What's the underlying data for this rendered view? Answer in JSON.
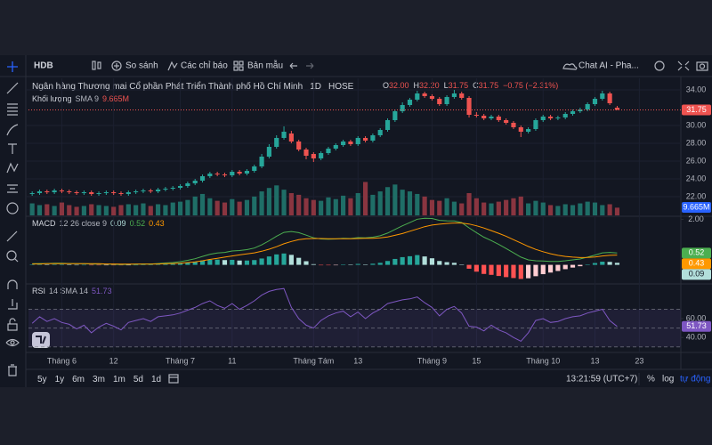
{
  "toolbar": {
    "symbol": "HDB",
    "compare": "So sánh",
    "indicators": "Các chỉ báo",
    "templates": "Bản mẫu",
    "chat": "Chat AI - Pha..."
  },
  "legend": {
    "title": "Ngân hàng Thương mại Cổ phần Phát Triển Thành phố Hồ Chí Minh",
    "interval": "1D",
    "exchange": "HOSE",
    "ohlc": [
      {
        "key": "O",
        "value": "32.00"
      },
      {
        "key": "H",
        "value": "32.20"
      },
      {
        "key": "L",
        "value": "31.75"
      },
      {
        "key": "C",
        "value": "31.75"
      }
    ],
    "change": "−0.75 (−2.31%)"
  },
  "chart_data": [
    {
      "type": "candlestick",
      "up_color": "#26a69a",
      "down_color": "#ef5350",
      "grid": true,
      "xlim": [
        -0.5,
        87.6
      ],
      "xticks": [
        {
          "value": 4,
          "label": "Tháng 6"
        },
        {
          "value": 11,
          "label": "12"
        },
        {
          "value": 20,
          "label": "Tháng 7"
        },
        {
          "value": 27,
          "label": "11"
        },
        {
          "value": 38,
          "label": "Tháng Tám"
        },
        {
          "value": 44,
          "label": "13"
        },
        {
          "value": 54,
          "label": "Tháng 9"
        },
        {
          "value": 60,
          "label": "15"
        },
        {
          "value": 69,
          "label": "Tháng 10"
        },
        {
          "value": 76,
          "label": "13"
        },
        {
          "value": 82,
          "label": "23"
        }
      ],
      "ylim": [
        19.9,
        35.3
      ],
      "yticks": [
        {
          "value": 34,
          "label": "34.00"
        },
        {
          "value": 30,
          "label": "30.00"
        },
        {
          "value": 28,
          "label": "28.00"
        },
        {
          "value": 26,
          "label": "26.00"
        },
        {
          "value": 24,
          "label": "24.00"
        },
        {
          "value": 22,
          "label": "22.00"
        }
      ],
      "open": [
        22.3,
        22.4,
        22.6,
        22.5,
        22.7,
        22.6,
        22.5,
        22.4,
        22.5,
        22.3,
        22.4,
        22.5,
        22.4,
        22.3,
        22.5,
        22.6,
        22.7,
        22.6,
        22.8,
        22.9,
        23.0,
        23.2,
        23.5,
        23.8,
        24.3,
        24.6,
        24.5,
        24.4,
        24.8,
        24.6,
        24.9,
        25.4,
        26.5,
        27.6,
        28.6,
        29.1,
        28.2,
        27.3,
        26.8,
        26.3,
        26.9,
        27.4,
        27.8,
        28.2,
        27.9,
        28.6,
        28.3,
        28.9,
        29.5,
        30.6,
        31.6,
        32.3,
        32.9,
        33.6,
        33.3,
        33.0,
        32.4,
        33.2,
        33.6,
        33.1,
        31.2,
        31.1,
        30.8,
        31.0,
        30.6,
        30.3,
        29.8,
        29.3,
        29.6,
        30.6,
        31.0,
        30.8,
        30.9,
        31.3,
        31.6,
        31.8,
        32.4,
        33.0,
        33.6,
        32.0
      ],
      "high": [
        22.6,
        22.8,
        22.8,
        22.9,
        22.9,
        22.8,
        22.7,
        22.7,
        22.7,
        22.6,
        22.7,
        22.7,
        22.6,
        22.7,
        22.8,
        22.9,
        22.9,
        23.0,
        23.1,
        23.2,
        23.4,
        23.7,
        24.0,
        24.5,
        24.8,
        24.8,
        24.7,
        25.0,
        25.0,
        25.1,
        25.6,
        26.8,
        27.9,
        28.9,
        29.9,
        29.4,
        28.4,
        27.5,
        27.0,
        27.1,
        27.6,
        28.0,
        28.4,
        28.4,
        28.8,
        28.8,
        29.1,
        29.7,
        30.8,
        31.8,
        32.6,
        33.1,
        33.9,
        33.8,
        33.5,
        33.2,
        33.4,
        34.0,
        33.8,
        33.3,
        31.5,
        31.3,
        31.2,
        31.2,
        30.8,
        30.5,
        30.0,
        29.8,
        30.8,
        31.2,
        31.2,
        31.1,
        31.5,
        31.8,
        32.0,
        32.6,
        33.2,
        33.9,
        33.8,
        32.2
      ],
      "low": [
        22.1,
        22.2,
        22.3,
        22.3,
        22.4,
        22.3,
        22.2,
        22.2,
        22.1,
        22.1,
        22.2,
        22.2,
        22.1,
        22.1,
        22.3,
        22.4,
        22.4,
        22.4,
        22.6,
        22.7,
        22.8,
        23.0,
        23.3,
        23.6,
        24.1,
        24.3,
        24.2,
        24.2,
        24.4,
        24.4,
        24.7,
        25.2,
        26.3,
        27.4,
        28.4,
        28.0,
        27.1,
        26.2,
        25.9,
        26.1,
        26.7,
        27.2,
        27.6,
        27.7,
        27.7,
        28.1,
        28.1,
        28.7,
        29.3,
        30.4,
        31.4,
        32.1,
        32.7,
        33.1,
        32.8,
        32.2,
        32.2,
        33.0,
        32.9,
        30.9,
        30.9,
        30.6,
        30.6,
        30.4,
        30.1,
        29.6,
        28.7,
        29.1,
        29.4,
        30.4,
        30.6,
        30.6,
        30.7,
        31.1,
        31.4,
        31.6,
        32.2,
        32.8,
        32.3,
        31.75
      ],
      "close": [
        22.4,
        22.6,
        22.5,
        22.7,
        22.6,
        22.5,
        22.4,
        22.5,
        22.3,
        22.4,
        22.5,
        22.4,
        22.3,
        22.5,
        22.6,
        22.7,
        22.6,
        22.8,
        22.9,
        23.0,
        23.2,
        23.5,
        23.8,
        24.3,
        24.6,
        24.5,
        24.4,
        24.8,
        24.6,
        24.9,
        25.4,
        26.5,
        27.6,
        28.6,
        29.3,
        28.2,
        27.3,
        26.6,
        26.3,
        26.9,
        27.4,
        27.8,
        28.2,
        27.9,
        28.6,
        28.3,
        28.9,
        29.5,
        30.6,
        31.6,
        32.3,
        32.9,
        33.6,
        33.3,
        33.0,
        32.4,
        33.2,
        33.6,
        33.1,
        31.2,
        31.1,
        30.8,
        31.0,
        30.6,
        30.3,
        29.8,
        29.3,
        29.6,
        30.6,
        31.0,
        30.8,
        30.9,
        31.3,
        31.6,
        31.8,
        32.4,
        33.0,
        33.6,
        32.5,
        31.75
      ]
    },
    {
      "type": "volume",
      "name": "Khối lượng",
      "study": "SMA 9",
      "last_label": "9.665M",
      "label_color": "#2962ff",
      "up_color": "#1f6e67",
      "down_color": "#8a3540",
      "ylim": [
        0,
        160
      ],
      "values": [
        14,
        12,
        13,
        11,
        15,
        12,
        10,
        11,
        13,
        12,
        11,
        10,
        12,
        13,
        12,
        14,
        11,
        13,
        12,
        15,
        16,
        18,
        22,
        25,
        20,
        17,
        15,
        19,
        16,
        18,
        22,
        28,
        32,
        35,
        30,
        26,
        24,
        20,
        18,
        17,
        21,
        19,
        23,
        20,
        26,
        39,
        24,
        28,
        33,
        36,
        30,
        28,
        25,
        22,
        18,
        17,
        20,
        16,
        14,
        26,
        20,
        15,
        14,
        16,
        18,
        20,
        22,
        14,
        17,
        15,
        12,
        11,
        13,
        12,
        14,
        16,
        15,
        12,
        13,
        9
      ]
    },
    {
      "type": "macd",
      "name": "MACD",
      "params": "12 26 close 9",
      "ylim": [
        -0.8,
        2.1
      ],
      "yticks": [
        {
          "value": 2,
          "label": "2.00"
        }
      ],
      "hist_colors": [
        "#26a69a",
        "#b2dfdb",
        "#ff5252",
        "#ffcdd2"
      ],
      "series": [
        {
          "color": "#b2dfdb",
          "values": [
            0.01,
            0.02,
            0.01,
            0.02,
            0.02,
            0.01,
            0,
            0,
            -0.02,
            -0.02,
            -0.01,
            -0.02,
            -0.02,
            -0.01,
            0,
            0.01,
            0.01,
            0.02,
            0.03,
            0.04,
            0.07,
            0.1,
            0.14,
            0.19,
            0.22,
            0.23,
            0.21,
            0.22,
            0.19,
            0.19,
            0.21,
            0.28,
            0.37,
            0.46,
            0.5,
            0.44,
            0.31,
            0.16,
            0.03,
            -0.02,
            -0.02,
            -0.01,
            0.02,
            0.01,
            0.04,
            0.02,
            0.05,
            0.09,
            0.17,
            0.26,
            0.34,
            0.38,
            0.43,
            0.37,
            0.29,
            0.17,
            0.12,
            0.09,
            0.02,
            -0.17,
            -0.3,
            -0.4,
            -0.44,
            -0.49,
            -0.54,
            -0.58,
            -0.62,
            -0.59,
            -0.5,
            -0.41,
            -0.34,
            -0.27,
            -0.19,
            -0.12,
            -0.06,
            0.01,
            0.08,
            0.14,
            0.13,
            0.09
          ]
        },
        {
          "color": "#4caf50",
          "values": [
            0.05,
            0.06,
            0.06,
            0.07,
            0.07,
            0.06,
            0.05,
            0.05,
            0.03,
            0.03,
            0.03,
            0.02,
            0.01,
            0.02,
            0.03,
            0.04,
            0.04,
            0.06,
            0.08,
            0.1,
            0.14,
            0.2,
            0.27,
            0.37,
            0.46,
            0.52,
            0.55,
            0.61,
            0.63,
            0.67,
            0.74,
            0.88,
            1.06,
            1.26,
            1.43,
            1.47,
            1.42,
            1.31,
            1.19,
            1.14,
            1.13,
            1.14,
            1.17,
            1.16,
            1.2,
            1.19,
            1.22,
            1.28,
            1.4,
            1.56,
            1.72,
            1.86,
            2.01,
            2.05,
            2.04,
            1.96,
            1.94,
            1.93,
            1.86,
            1.63,
            1.42,
            1.22,
            1.07,
            0.9,
            0.72,
            0.53,
            0.34,
            0.22,
            0.18,
            0.17,
            0.15,
            0.15,
            0.18,
            0.22,
            0.26,
            0.34,
            0.43,
            0.53,
            0.55,
            0.52
          ]
        },
        {
          "color": "#ff9800",
          "values": [
            0.04,
            0.04,
            0.05,
            0.05,
            0.05,
            0.05,
            0.05,
            0.05,
            0.05,
            0.05,
            0.04,
            0.04,
            0.03,
            0.03,
            0.03,
            0.03,
            0.03,
            0.04,
            0.05,
            0.06,
            0.07,
            0.1,
            0.13,
            0.18,
            0.24,
            0.29,
            0.34,
            0.39,
            0.44,
            0.48,
            0.53,
            0.6,
            0.69,
            0.8,
            0.93,
            1.03,
            1.11,
            1.15,
            1.16,
            1.16,
            1.15,
            1.15,
            1.15,
            1.15,
            1.16,
            1.17,
            1.17,
            1.19,
            1.23,
            1.3,
            1.38,
            1.48,
            1.58,
            1.68,
            1.75,
            1.79,
            1.82,
            1.84,
            1.84,
            1.8,
            1.72,
            1.62,
            1.51,
            1.39,
            1.26,
            1.11,
            0.96,
            0.81,
            0.68,
            0.58,
            0.49,
            0.42,
            0.37,
            0.34,
            0.32,
            0.33,
            0.35,
            0.39,
            0.42,
            0.43
          ]
        }
      ]
    },
    {
      "type": "rsi",
      "name": "RSI",
      "params": "14 SMA 14",
      "color": "#7e57c2",
      "ylim": [
        25,
        96
      ],
      "yticks": [
        {
          "value": 60,
          "label": "60.00"
        },
        {
          "value": 40,
          "label": "40.00"
        }
      ],
      "levels": [
        70,
        50,
        30
      ],
      "values": [
        55,
        62,
        57,
        60,
        56,
        54,
        49,
        53,
        45,
        51,
        55,
        52,
        48,
        56,
        58,
        60,
        57,
        62,
        63,
        64,
        66,
        69,
        72,
        76,
        79,
        74,
        71,
        76,
        70,
        74,
        79,
        85,
        89,
        91,
        92,
        72,
        60,
        53,
        50,
        58,
        63,
        66,
        68,
        62,
        67,
        60,
        66,
        70,
        76,
        78,
        80,
        81,
        83,
        77,
        72,
        63,
        70,
        73,
        66,
        52,
        51,
        47,
        53,
        48,
        45,
        40,
        36,
        45,
        58,
        60,
        56,
        57,
        60,
        62,
        63,
        66,
        68,
        70,
        58,
        51.73
      ]
    }
  ],
  "bottom_bar": {
    "ranges": [
      "5y",
      "1y",
      "6m",
      "3m",
      "1m",
      "5d",
      "1d"
    ],
    "clock": "13:21:59 (UTC+7)",
    "percent": "%",
    "log": "log",
    "auto": "tự động"
  }
}
